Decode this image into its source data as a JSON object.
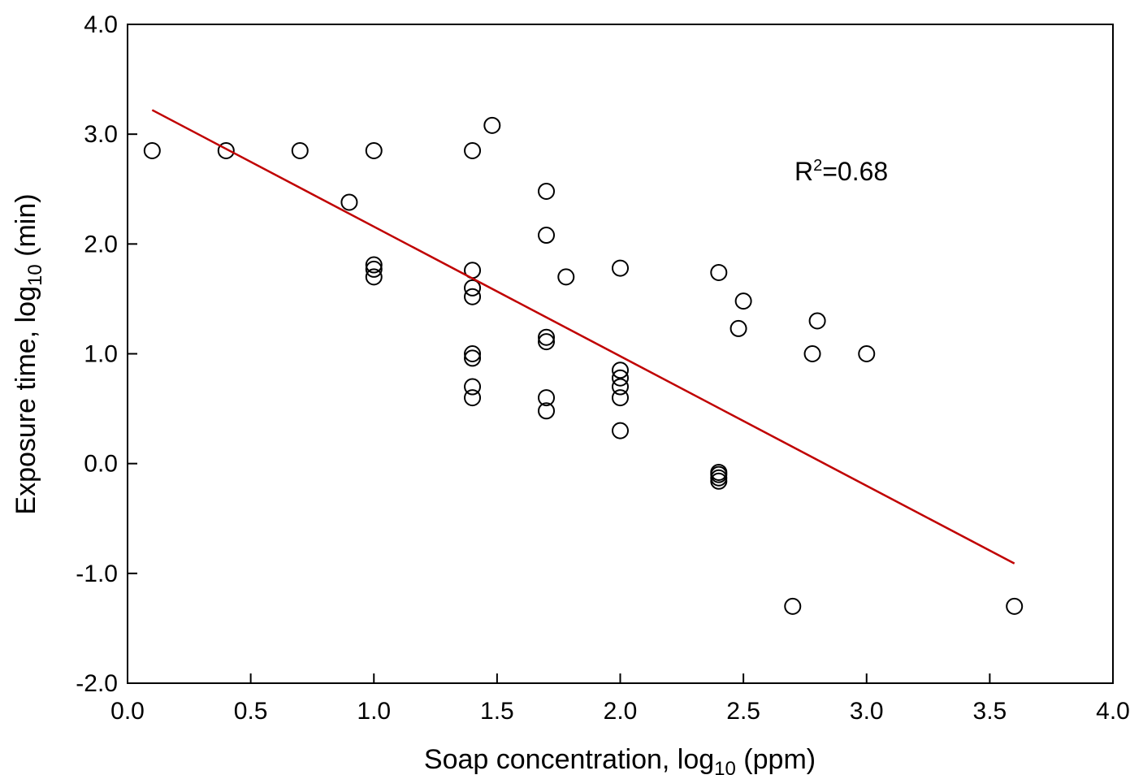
{
  "chart_data": {
    "type": "scatter",
    "xlabel": {
      "text": "Soap concentration, log",
      "sub": "10",
      "suffix": " (ppm)"
    },
    "ylabel": {
      "text": "Exposure time, log",
      "sub": "10",
      "suffix": " (min)"
    },
    "xlim": [
      0.0,
      4.0
    ],
    "ylim": [
      -2.0,
      4.0
    ],
    "x_ticks": [
      "0.0",
      "0.5",
      "1.0",
      "1.5",
      "2.0",
      "2.5",
      "3.0",
      "3.5",
      "4.0"
    ],
    "y_ticks": [
      "-2.0",
      "-1.0",
      "0.0",
      "1.0",
      "2.0",
      "3.0",
      "4.0"
    ],
    "grid": false,
    "annotation": {
      "text": "R",
      "sup": "2",
      "suffix": "=0.68"
    },
    "series": [
      {
        "marker": "open-circle",
        "points": [
          {
            "x": 0.1,
            "y": 2.85
          },
          {
            "x": 0.4,
            "y": 2.85
          },
          {
            "x": 0.7,
            "y": 2.85
          },
          {
            "x": 1.0,
            "y": 2.85
          },
          {
            "x": 1.4,
            "y": 2.85
          },
          {
            "x": 1.48,
            "y": 3.08
          },
          {
            "x": 0.9,
            "y": 2.38
          },
          {
            "x": 1.0,
            "y": 1.81
          },
          {
            "x": 1.0,
            "y": 1.77
          },
          {
            "x": 1.0,
            "y": 1.7
          },
          {
            "x": 1.4,
            "y": 1.76
          },
          {
            "x": 1.4,
            "y": 1.6
          },
          {
            "x": 1.4,
            "y": 1.52
          },
          {
            "x": 1.4,
            "y": 1.0
          },
          {
            "x": 1.4,
            "y": 0.96
          },
          {
            "x": 1.4,
            "y": 0.7
          },
          {
            "x": 1.4,
            "y": 0.6
          },
          {
            "x": 1.7,
            "y": 2.48
          },
          {
            "x": 1.7,
            "y": 2.08
          },
          {
            "x": 1.78,
            "y": 1.7
          },
          {
            "x": 1.7,
            "y": 1.15
          },
          {
            "x": 1.7,
            "y": 1.11
          },
          {
            "x": 1.7,
            "y": 0.6
          },
          {
            "x": 1.7,
            "y": 0.48
          },
          {
            "x": 2.0,
            "y": 1.78
          },
          {
            "x": 2.0,
            "y": 0.85
          },
          {
            "x": 2.0,
            "y": 0.78
          },
          {
            "x": 2.0,
            "y": 0.7
          },
          {
            "x": 2.0,
            "y": 0.6
          },
          {
            "x": 2.0,
            "y": 0.3
          },
          {
            "x": 2.4,
            "y": 1.74
          },
          {
            "x": 2.5,
            "y": 1.48
          },
          {
            "x": 2.48,
            "y": 1.23
          },
          {
            "x": 2.4,
            "y": -0.08
          },
          {
            "x": 2.4,
            "y": -0.1
          },
          {
            "x": 2.4,
            "y": -0.13
          },
          {
            "x": 2.4,
            "y": -0.16
          },
          {
            "x": 2.8,
            "y": 1.3
          },
          {
            "x": 2.78,
            "y": 1.0
          },
          {
            "x": 3.0,
            "y": 1.0
          },
          {
            "x": 2.7,
            "y": -1.3
          },
          {
            "x": 3.6,
            "y": -1.3
          }
        ]
      }
    ],
    "trendline": {
      "type": "linear",
      "x": [
        0.1,
        3.6
      ],
      "y": [
        3.22,
        -0.91
      ],
      "color": "#c00000"
    },
    "colors": {
      "marker": "#000000",
      "axis": "#000000",
      "trendline": "#c00000"
    }
  }
}
